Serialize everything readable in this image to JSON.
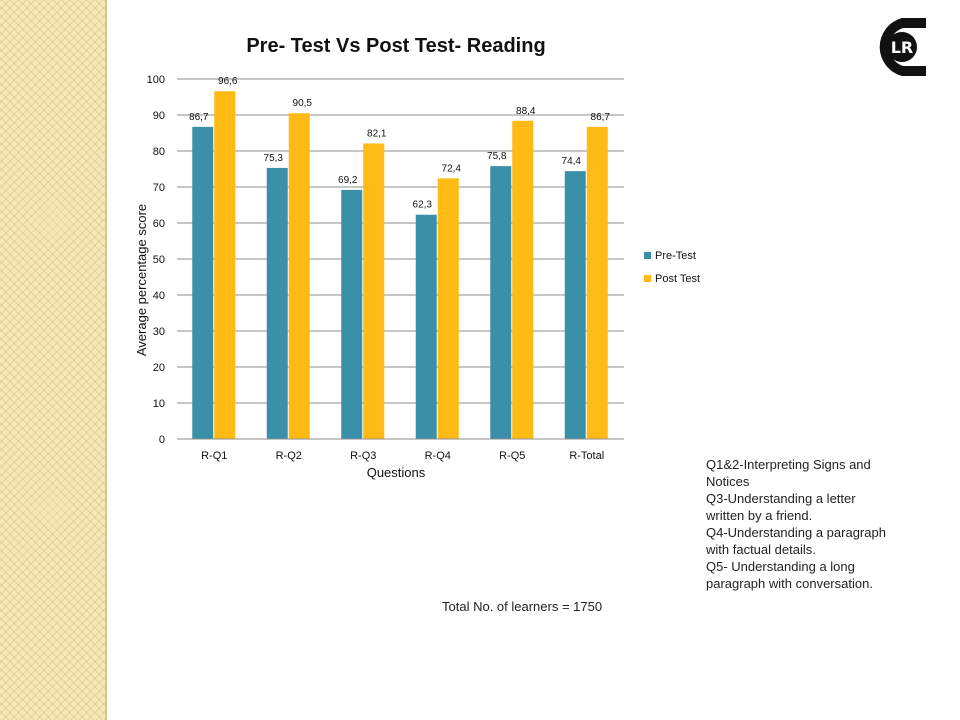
{
  "chart_data": {
    "type": "bar",
    "title": "Pre- Test Vs Post Test- Reading",
    "xlabel": "Questions",
    "ylabel": "Average percentage score",
    "categories": [
      "R-Q1",
      "R-Q2",
      "R-Q3",
      "R-Q4",
      "R-Q5",
      "R-Total"
    ],
    "series": [
      {
        "name": "Pre-Test",
        "values": [
          86.7,
          75.3,
          69.2,
          62.3,
          75.8,
          74.4
        ],
        "labels": [
          "86,7",
          "75,3",
          "69,2",
          "62,3",
          "75,8",
          "74,4"
        ],
        "color": "#3a90a8"
      },
      {
        "name": "Post Test",
        "values": [
          96.6,
          90.5,
          82.1,
          72.4,
          88.4,
          86.7
        ],
        "labels": [
          "96,6",
          "90,5",
          "82,1",
          "72,4",
          "88,4",
          "86,7"
        ],
        "color": "#ffba14"
      }
    ],
    "ylim": [
      0,
      100
    ],
    "yticks": [
      0,
      10,
      20,
      30,
      40,
      50,
      60,
      70,
      80,
      90,
      100
    ],
    "grid": true,
    "legend": "right"
  },
  "total_note": "Total No. of learners = 1750",
  "question_notes": [
    "Q1&2-Interpreting Signs and Notices",
    "Q3-Understanding a letter written by a friend.",
    "Q4-Understanding a paragraph with factual details.",
    "Q5- Understanding a long paragraph with conversation."
  ],
  "logo_text": "LR",
  "colors": {
    "strip": "#f6e7b8",
    "gridline": "#8c8c8c"
  }
}
